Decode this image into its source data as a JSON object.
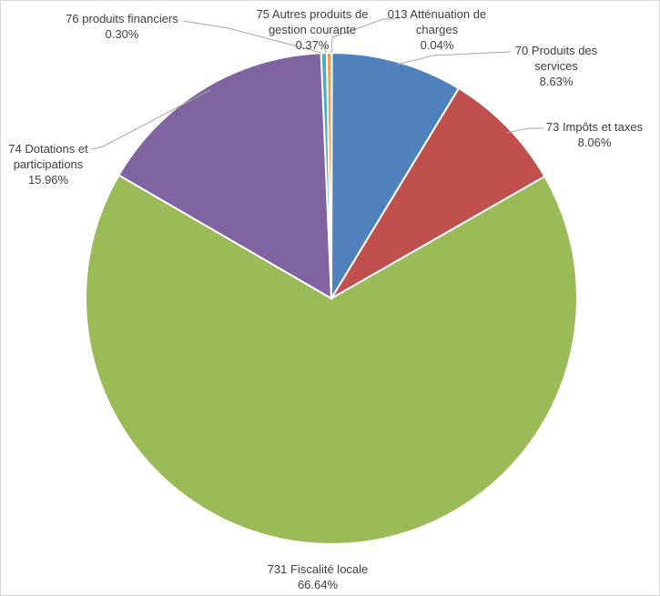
{
  "chart_data": {
    "type": "pie",
    "title": "",
    "start": "top",
    "direction": "clockwise",
    "legend": "none",
    "slices": [
      {
        "name": "013 Atténuation de charges",
        "name_lines": [
          "013 Atténuation de",
          "charges"
        ],
        "value": 0.04,
        "value_label": "0.04%",
        "color": "#F79646"
      },
      {
        "name": "70 Produits des services",
        "name_lines": [
          "70 Produits des",
          "services"
        ],
        "value": 8.63,
        "value_label": "8.63%",
        "color": "#4F81BD"
      },
      {
        "name": "73 Impôts et taxes",
        "name_lines": [
          "73 Impôts et taxes"
        ],
        "value": 8.06,
        "value_label": "8.06%",
        "color": "#C0504D"
      },
      {
        "name": "731 Fiscalité locale",
        "name_lines": [
          "731 Fiscalité locale"
        ],
        "value": 66.64,
        "value_label": "66.64%",
        "color": "#9BBB59"
      },
      {
        "name": "74 Dotations et participations",
        "name_lines": [
          "74 Dotations et",
          "participations"
        ],
        "value": 15.96,
        "value_label": "15.96%",
        "color": "#8064A2"
      },
      {
        "name": "75 Autres produits de gestion courante",
        "name_lines": [
          "75 Autres produits de",
          "gestion courante"
        ],
        "value": 0.37,
        "value_label": "0.37%",
        "color": "#4BACC6"
      },
      {
        "name": "76 produits financiers",
        "name_lines": [
          "76 produits financiers"
        ],
        "value": 0.3,
        "value_label": "0.30%",
        "color": "#F79646"
      }
    ]
  }
}
